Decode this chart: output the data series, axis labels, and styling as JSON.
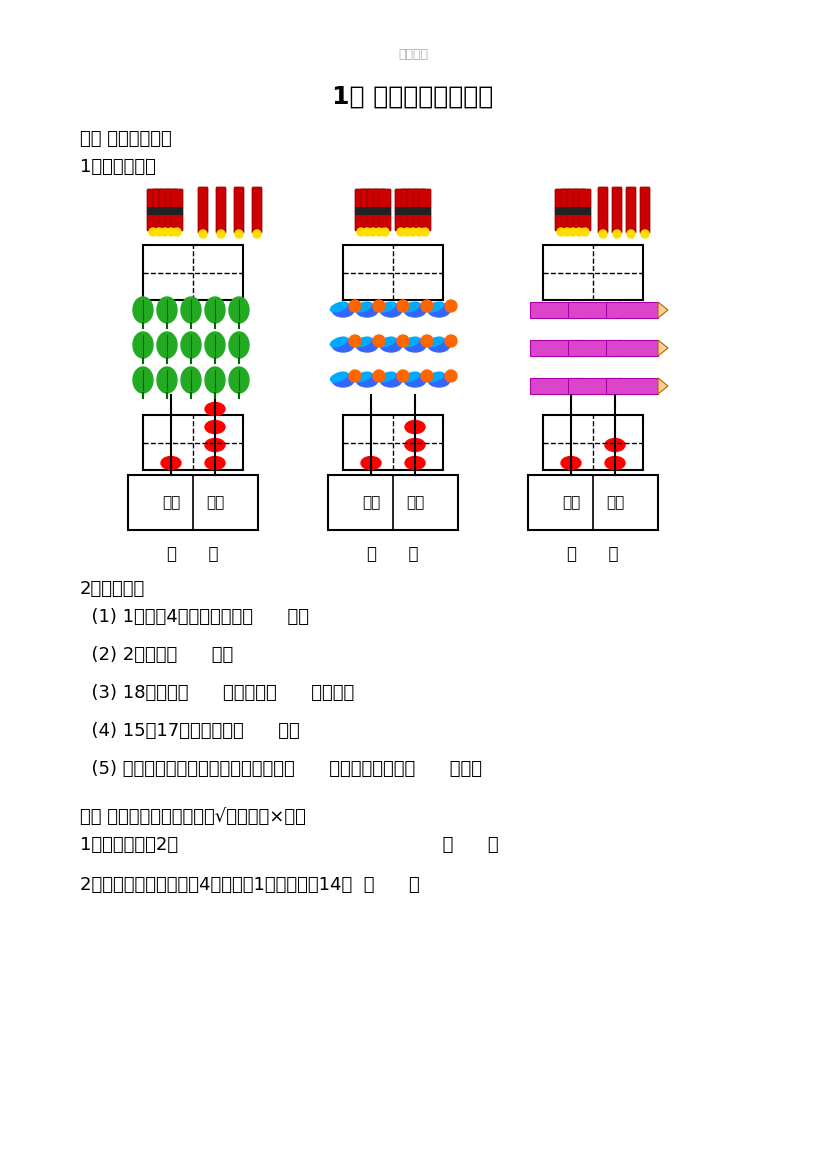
{
  "title": "1、 数数、读数和写数",
  "watermark": "精选范本",
  "section1_title": "一、 我能填得对。",
  "subsection1_title": "1、看图写数。",
  "subsection2_title": "2、填一填。",
  "fill_questions": [
    "  (1) 1个十和4个一合起来是（      ）。",
    "  (2) 2个十是（      ）。",
    "  (3) 18里面有（      ）个十和（      ）个一。",
    "  (4) 15和17中间的数是（      ）。",
    "  (5) 一个两位数，从右边起，第一位是（      ）位；第二位是（      ）位。"
  ],
  "section2_title": "二、 数学门诊部。（对的打√，错的打×。）",
  "judge_questions": [
    "1、二十写作：2。                                              （      ）",
    "2、一个两位数，个位是4，十位是1，这个数是14。  （      ）"
  ],
  "bg_color": "#ffffff",
  "text_color": "#000000",
  "watermark_color": "#aaaaaa"
}
